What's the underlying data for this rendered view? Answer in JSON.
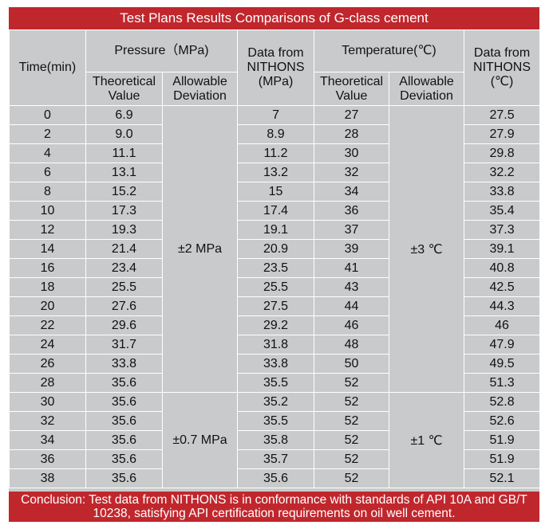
{
  "title": "Test Plans Results Comparisons of G-class cement",
  "headers": {
    "time": "Time(min)",
    "pressure": "Pressure（MPa)",
    "pressure_theoretical": "Theoretical Value",
    "pressure_deviation": "Allowable Deviation",
    "pressure_nithons": "Data from NITHONS (MPa)",
    "temperature": "Temperature(℃)",
    "temperature_theoretical": "Theoretical Value",
    "temperature_deviation": "Allowable Deviation",
    "temperature_nithons": "Data from NITHONS (℃)"
  },
  "deviations": {
    "pressure_group1": "±2 MPa",
    "pressure_group2": "±0.7 MPa",
    "temperature_group1": "±3 ℃",
    "temperature_group2": "±1 ℃"
  },
  "rows": [
    [
      "0",
      "6.9",
      "7",
      "27",
      "27.5"
    ],
    [
      "2",
      "9.0",
      "8.9",
      "28",
      "27.9"
    ],
    [
      "4",
      "11.1",
      "11.2",
      "30",
      "29.8"
    ],
    [
      "6",
      "13.1",
      "13.2",
      "32",
      "32.2"
    ],
    [
      "8",
      "15.2",
      "15",
      "34",
      "33.8"
    ],
    [
      "10",
      "17.3",
      "17.4",
      "36",
      "35.4"
    ],
    [
      "12",
      "19.3",
      "19.1",
      "37",
      "37.3"
    ],
    [
      "14",
      "21.4",
      "20.9",
      "39",
      "39.1"
    ],
    [
      "16",
      "23.4",
      "23.5",
      "41",
      "40.8"
    ],
    [
      "18",
      "25.5",
      "25.5",
      "43",
      "42.5"
    ],
    [
      "20",
      "27.6",
      "27.5",
      "44",
      "44.3"
    ],
    [
      "22",
      "29.6",
      "29.2",
      "46",
      "46"
    ],
    [
      "24",
      "31.7",
      "31.8",
      "48",
      "47.9"
    ],
    [
      "26",
      "33.8",
      "33.8",
      "50",
      "49.5"
    ],
    [
      "28",
      "35.6",
      "35.5",
      "52",
      "51.3"
    ],
    [
      "30",
      "35.6",
      "35.2",
      "52",
      "52.8"
    ],
    [
      "32",
      "35.6",
      "35.5",
      "52",
      "52.6"
    ],
    [
      "34",
      "35.6",
      "35.8",
      "52",
      "51.9"
    ],
    [
      "36",
      "35.6",
      "35.7",
      "52",
      "51.9"
    ],
    [
      "38",
      "35.6",
      "35.6",
      "52",
      "52.1"
    ]
  ],
  "conclusion": "Conclusion: Test data from NITHONS is in conformance with standards of API 10A and GB/T 10238, satisfying API certification requirements on oil well cement.",
  "colors": {
    "accent": "#c0272d",
    "table_bg": "#c9cacb",
    "grid": "#ffffff"
  }
}
